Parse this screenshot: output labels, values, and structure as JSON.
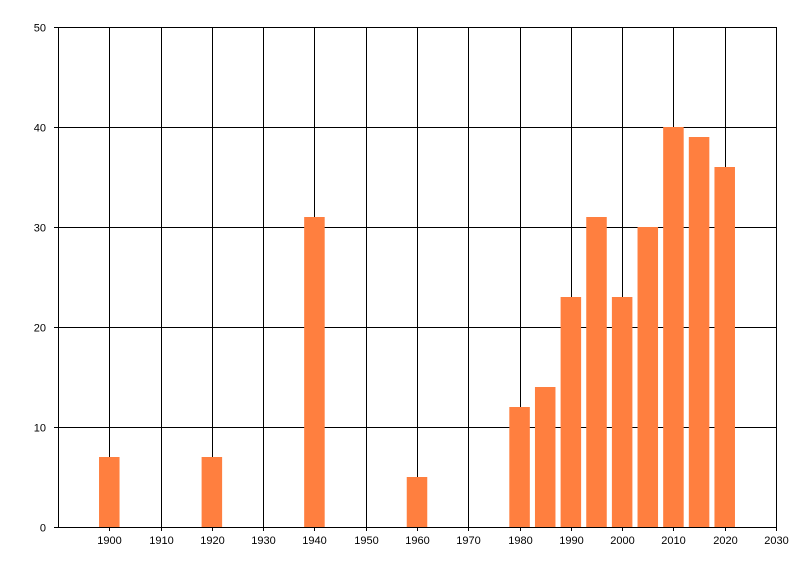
{
  "chart_data": {
    "type": "bar",
    "title": "",
    "xlabel": "",
    "ylabel": "",
    "xlim": [
      1890,
      2030
    ],
    "ylim": [
      0,
      50
    ],
    "x_ticks": [
      1900,
      1910,
      1920,
      1930,
      1940,
      1950,
      1960,
      1970,
      1980,
      1990,
      2000,
      2010,
      2020,
      2030
    ],
    "y_ticks": [
      0,
      10,
      20,
      30,
      40,
      50
    ],
    "grid": true,
    "legend": "none",
    "bar_color": "#ff7f3f",
    "x": [
      1900,
      1920,
      1940,
      1960,
      1980,
      1985,
      1990,
      1995,
      2000,
      2005,
      2010,
      2015,
      2020
    ],
    "values": [
      7,
      7,
      31,
      5,
      12,
      14,
      23,
      31,
      23,
      30,
      40,
      39,
      36
    ]
  }
}
